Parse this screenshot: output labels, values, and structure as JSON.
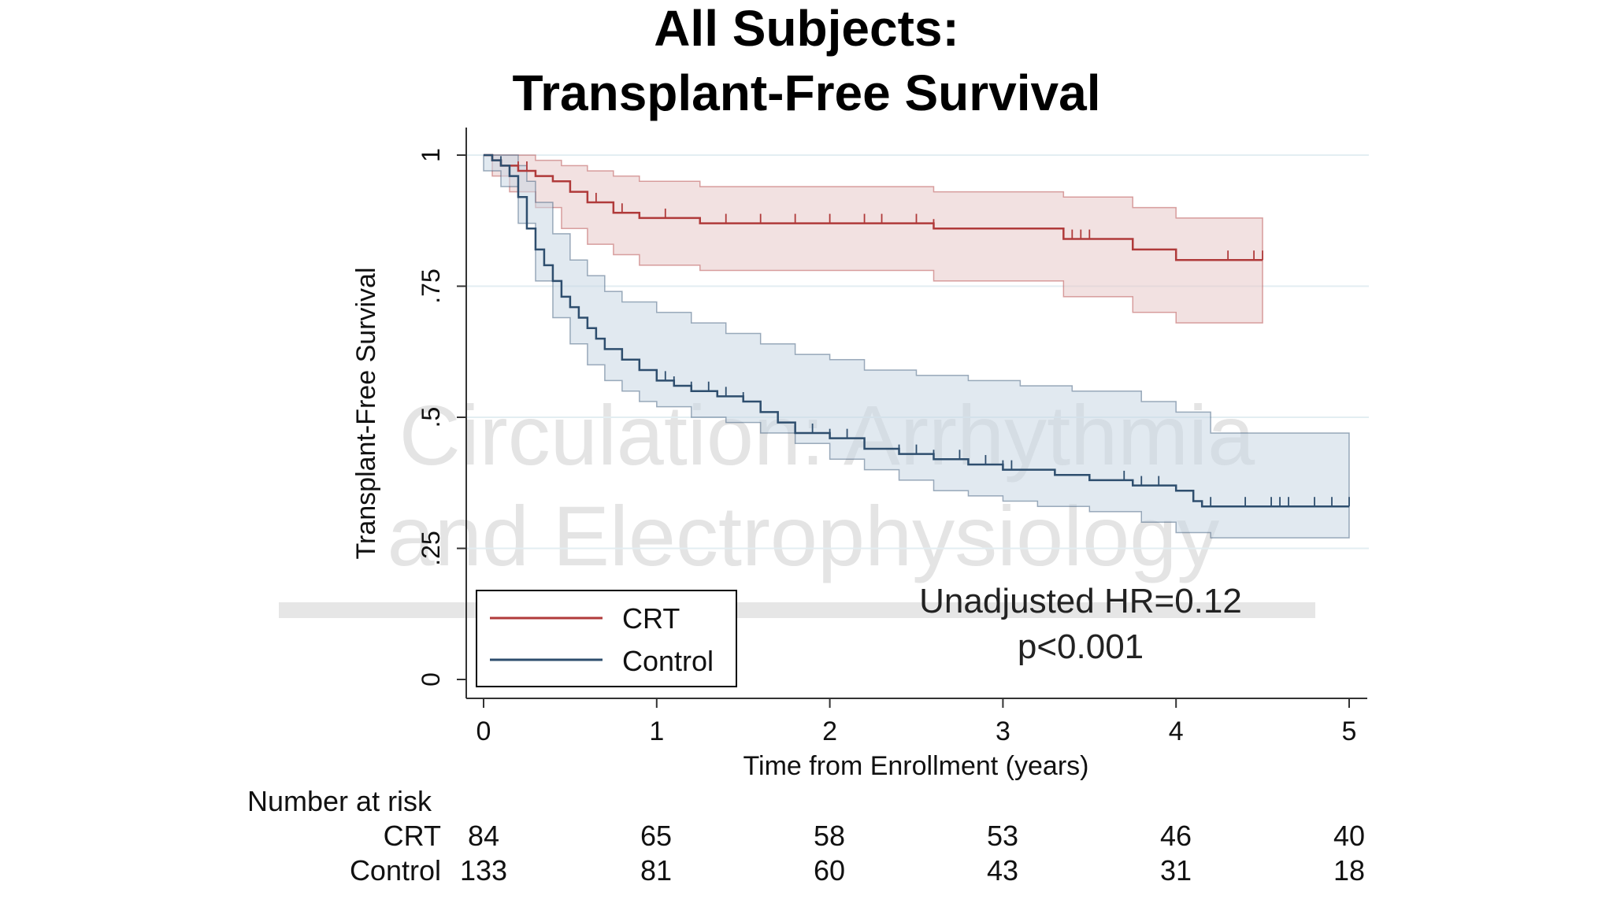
{
  "chart_data": {
    "type": "line",
    "title": [
      "All Subjects:",
      "Transplant-Free Survival"
    ],
    "xlabel": "Time from Enrollment (years)",
    "ylabel": "Transplant-Free Survival",
    "xlim": [
      0,
      5
    ],
    "ylim": [
      0,
      1
    ],
    "x_ticks": [
      0,
      1,
      2,
      3,
      4,
      5
    ],
    "x_tick_labels": [
      "0",
      "1",
      "2",
      "3",
      "4",
      "5"
    ],
    "y_ticks": [
      0,
      0.25,
      0.5,
      0.75,
      1
    ],
    "y_tick_labels": [
      "0",
      ".25",
      ".5",
      ".75",
      "1"
    ],
    "grid": "horizontal",
    "legend": {
      "position": "bottom-left",
      "entries": [
        "CRT",
        "Control"
      ]
    },
    "annotation": [
      "Unadjusted HR=0.12",
      "p<0.001"
    ],
    "series": [
      {
        "name": "CRT",
        "color": "#b03a3a",
        "band_color": "#e8c8c8",
        "steps": [
          [
            0,
            1.0
          ],
          [
            0.05,
            0.99
          ],
          [
            0.1,
            0.98
          ],
          [
            0.2,
            0.97
          ],
          [
            0.3,
            0.96
          ],
          [
            0.4,
            0.95
          ],
          [
            0.5,
            0.93
          ],
          [
            0.6,
            0.91
          ],
          [
            0.75,
            0.89
          ],
          [
            0.9,
            0.88
          ],
          [
            1.25,
            0.87
          ],
          [
            2.6,
            0.86
          ],
          [
            3.35,
            0.84
          ],
          [
            3.75,
            0.82
          ],
          [
            4.0,
            0.8
          ],
          [
            4.5,
            0.8
          ]
        ],
        "upper": [
          [
            0,
            1.0
          ],
          [
            0.2,
            1.0
          ],
          [
            0.3,
            0.99
          ],
          [
            0.45,
            0.98
          ],
          [
            0.6,
            0.97
          ],
          [
            0.75,
            0.96
          ],
          [
            0.9,
            0.95
          ],
          [
            1.25,
            0.94
          ],
          [
            2.6,
            0.93
          ],
          [
            3.35,
            0.92
          ],
          [
            3.75,
            0.9
          ],
          [
            4.0,
            0.88
          ],
          [
            4.5,
            0.88
          ]
        ],
        "lower": [
          [
            0,
            1.0
          ],
          [
            0.05,
            0.96
          ],
          [
            0.15,
            0.93
          ],
          [
            0.3,
            0.9
          ],
          [
            0.45,
            0.86
          ],
          [
            0.6,
            0.83
          ],
          [
            0.75,
            0.81
          ],
          [
            0.9,
            0.79
          ],
          [
            1.25,
            0.78
          ],
          [
            2.6,
            0.76
          ],
          [
            3.35,
            0.73
          ],
          [
            3.75,
            0.7
          ],
          [
            4.0,
            0.68
          ],
          [
            4.5,
            0.68
          ]
        ],
        "censor_times": [
          0.2,
          0.25,
          0.5,
          0.6,
          0.65,
          0.8,
          1.05,
          1.4,
          1.6,
          1.8,
          2.0,
          2.2,
          2.3,
          2.5,
          2.6,
          3.35,
          3.4,
          3.45,
          3.5,
          4.0,
          4.3,
          4.45,
          4.5
        ]
      },
      {
        "name": "Control",
        "color": "#2e4e6e",
        "band_color": "#c9d7e4",
        "steps": [
          [
            0,
            1.0
          ],
          [
            0.05,
            0.99
          ],
          [
            0.1,
            0.98
          ],
          [
            0.15,
            0.96
          ],
          [
            0.2,
            0.92
          ],
          [
            0.25,
            0.86
          ],
          [
            0.3,
            0.82
          ],
          [
            0.35,
            0.79
          ],
          [
            0.4,
            0.76
          ],
          [
            0.45,
            0.73
          ],
          [
            0.5,
            0.71
          ],
          [
            0.55,
            0.69
          ],
          [
            0.6,
            0.67
          ],
          [
            0.65,
            0.65
          ],
          [
            0.7,
            0.63
          ],
          [
            0.8,
            0.61
          ],
          [
            0.9,
            0.59
          ],
          [
            1.0,
            0.57
          ],
          [
            1.1,
            0.56
          ],
          [
            1.2,
            0.55
          ],
          [
            1.35,
            0.54
          ],
          [
            1.5,
            0.53
          ],
          [
            1.6,
            0.51
          ],
          [
            1.7,
            0.49
          ],
          [
            1.8,
            0.47
          ],
          [
            2.0,
            0.46
          ],
          [
            2.2,
            0.44
          ],
          [
            2.4,
            0.43
          ],
          [
            2.6,
            0.42
          ],
          [
            2.8,
            0.41
          ],
          [
            3.0,
            0.4
          ],
          [
            3.3,
            0.39
          ],
          [
            3.5,
            0.38
          ],
          [
            3.75,
            0.37
          ],
          [
            4.0,
            0.36
          ],
          [
            4.1,
            0.34
          ],
          [
            4.15,
            0.33
          ],
          [
            4.3,
            0.33
          ],
          [
            4.5,
            0.33
          ],
          [
            5.0,
            0.33
          ]
        ],
        "upper": [
          [
            0,
            1.0
          ],
          [
            0.1,
            1.0
          ],
          [
            0.2,
            0.98
          ],
          [
            0.25,
            0.95
          ],
          [
            0.3,
            0.91
          ],
          [
            0.4,
            0.85
          ],
          [
            0.5,
            0.8
          ],
          [
            0.6,
            0.77
          ],
          [
            0.7,
            0.74
          ],
          [
            0.8,
            0.72
          ],
          [
            1.0,
            0.7
          ],
          [
            1.2,
            0.68
          ],
          [
            1.4,
            0.66
          ],
          [
            1.6,
            0.64
          ],
          [
            1.8,
            0.62
          ],
          [
            2.0,
            0.61
          ],
          [
            2.2,
            0.59
          ],
          [
            2.5,
            0.58
          ],
          [
            2.8,
            0.57
          ],
          [
            3.1,
            0.56
          ],
          [
            3.4,
            0.55
          ],
          [
            3.8,
            0.53
          ],
          [
            4.0,
            0.51
          ],
          [
            4.2,
            0.47
          ],
          [
            5.0,
            0.47
          ]
        ],
        "lower": [
          [
            0,
            0.97
          ],
          [
            0.1,
            0.94
          ],
          [
            0.2,
            0.87
          ],
          [
            0.3,
            0.76
          ],
          [
            0.4,
            0.69
          ],
          [
            0.5,
            0.64
          ],
          [
            0.6,
            0.6
          ],
          [
            0.7,
            0.57
          ],
          [
            0.8,
            0.55
          ],
          [
            0.9,
            0.53
          ],
          [
            1.0,
            0.52
          ],
          [
            1.2,
            0.5
          ],
          [
            1.4,
            0.49
          ],
          [
            1.6,
            0.47
          ],
          [
            1.8,
            0.45
          ],
          [
            2.0,
            0.42
          ],
          [
            2.2,
            0.4
          ],
          [
            2.4,
            0.38
          ],
          [
            2.6,
            0.36
          ],
          [
            2.8,
            0.35
          ],
          [
            3.0,
            0.34
          ],
          [
            3.2,
            0.33
          ],
          [
            3.5,
            0.32
          ],
          [
            3.8,
            0.3
          ],
          [
            4.0,
            0.28
          ],
          [
            4.2,
            0.27
          ],
          [
            5.0,
            0.27
          ]
        ],
        "censor_times": [
          0.1,
          0.15,
          0.2,
          0.3,
          0.8,
          0.9,
          1.05,
          1.1,
          1.2,
          1.3,
          1.4,
          1.5,
          1.6,
          1.8,
          1.9,
          2.0,
          2.1,
          2.4,
          2.5,
          2.6,
          2.75,
          2.9,
          3.0,
          3.05,
          3.7,
          3.8,
          3.9,
          4.1,
          4.2,
          4.4,
          4.55,
          4.6,
          4.65,
          4.8,
          4.9,
          5.0
        ]
      }
    ],
    "number_at_risk": {
      "header": "Number at risk",
      "times": [
        "0",
        "1",
        "2",
        "3",
        "4",
        "5"
      ],
      "rows": [
        {
          "label": "CRT",
          "values": [
            "84",
            "65",
            "58",
            "53",
            "46",
            "40"
          ]
        },
        {
          "label": "Control",
          "values": [
            "133",
            "81",
            "60",
            "43",
            "31",
            "18"
          ]
        }
      ]
    }
  },
  "watermark": [
    "Circulation: Arrhythmia",
    "and Electrophysiology"
  ]
}
